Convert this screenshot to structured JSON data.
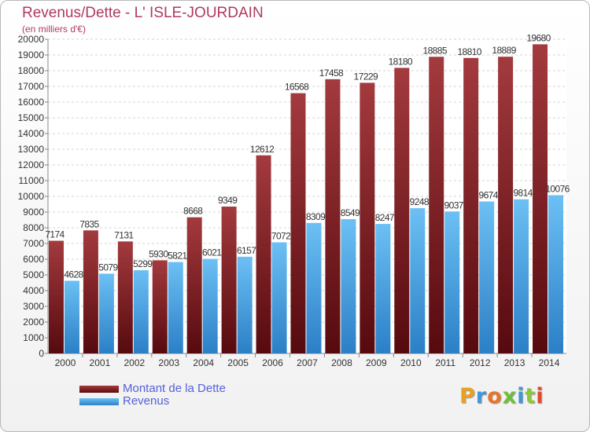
{
  "title": "Revenus/Dette - L' ISLE-JOURDAIN",
  "subtitle": "(en milliers d'€)",
  "logo": {
    "text": "Proxiti"
  },
  "colors": {
    "debt": "#7a1a1e",
    "revenue": "#3f98d8",
    "title": "#b03a5e",
    "legend_text": "#5561d8"
  },
  "chart_data": {
    "type": "bar",
    "title": "Revenus/Dette - L' ISLE-JOURDAIN",
    "subtitle": "(en milliers d'€)",
    "categories": [
      "2000",
      "2001",
      "2002",
      "2003",
      "2004",
      "2005",
      "2006",
      "2007",
      "2008",
      "2009",
      "2010",
      "2011",
      "2012",
      "2013",
      "2014"
    ],
    "series": [
      {
        "name": "Montant de la Dette",
        "values": [
          7174,
          7835,
          7131,
          5930,
          8668,
          9349,
          12612,
          16568,
          17458,
          17229,
          18180,
          18885,
          18810,
          18889,
          19680
        ]
      },
      {
        "name": "Revenus",
        "values": [
          4628,
          5079,
          5299,
          5821,
          6021,
          6157,
          7072,
          8309,
          8549,
          8247,
          9248,
          9037,
          9674,
          9814,
          10076
        ]
      }
    ],
    "yticks": [
      0,
      1000,
      2000,
      3000,
      4000,
      5000,
      6000,
      7000,
      8000,
      9000,
      10000,
      11000,
      12000,
      13000,
      14000,
      15000,
      16000,
      17000,
      18000,
      19000,
      20000
    ],
    "ylim": [
      0,
      20000
    ],
    "xlabel": "",
    "ylabel": "",
    "grid": true,
    "legend": "bottom-left"
  }
}
